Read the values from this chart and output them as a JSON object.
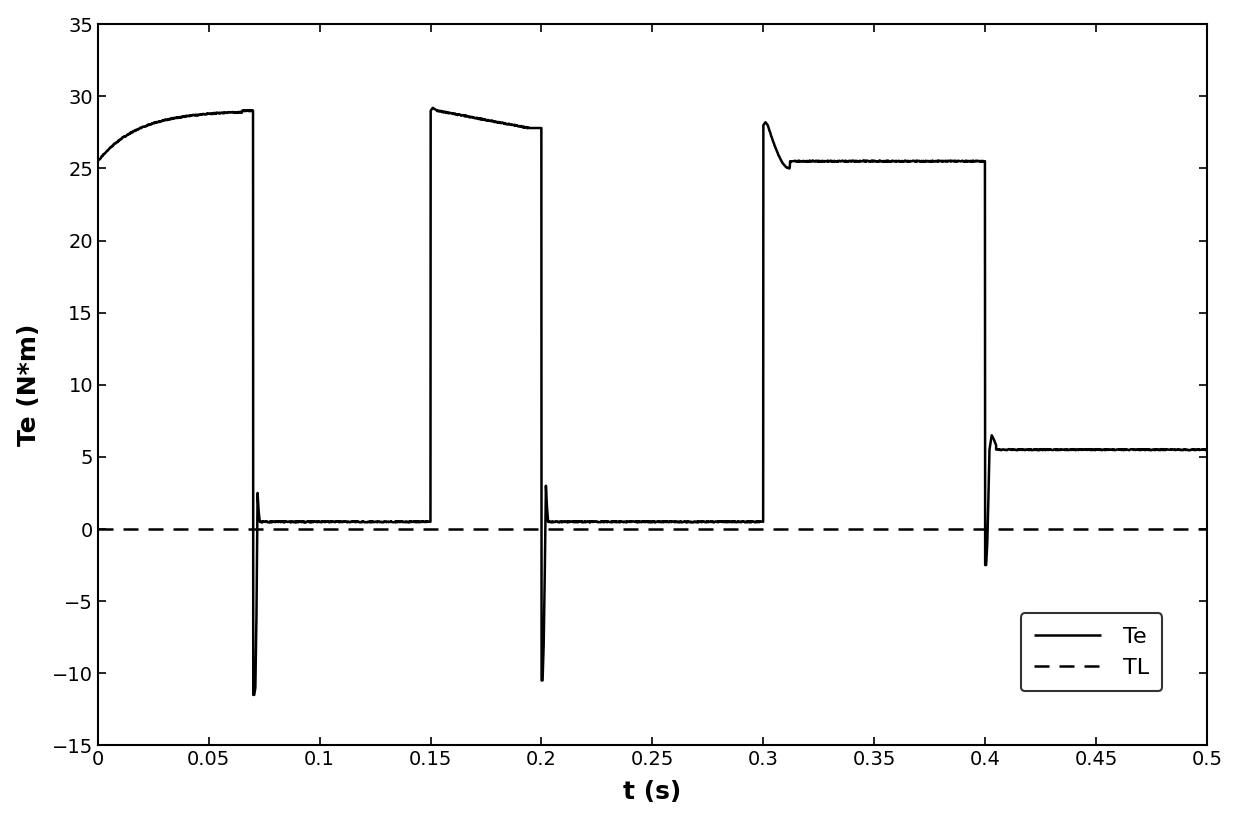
{
  "title": "",
  "xlabel": "t (s)",
  "ylabel": "Te (N*m)",
  "xlim": [
    0,
    0.5
  ],
  "ylim": [
    -15,
    35
  ],
  "yticks": [
    -15,
    -10,
    -5,
    0,
    5,
    10,
    15,
    20,
    25,
    30,
    35
  ],
  "xticks": [
    0,
    0.05,
    0.1,
    0.15,
    0.2,
    0.25,
    0.3,
    0.35,
    0.4,
    0.45,
    0.5
  ],
  "line_color": "#000000",
  "dashed_color": "#000000",
  "legend_labels": [
    "Te",
    "TL"
  ],
  "background_color": "#ffffff"
}
